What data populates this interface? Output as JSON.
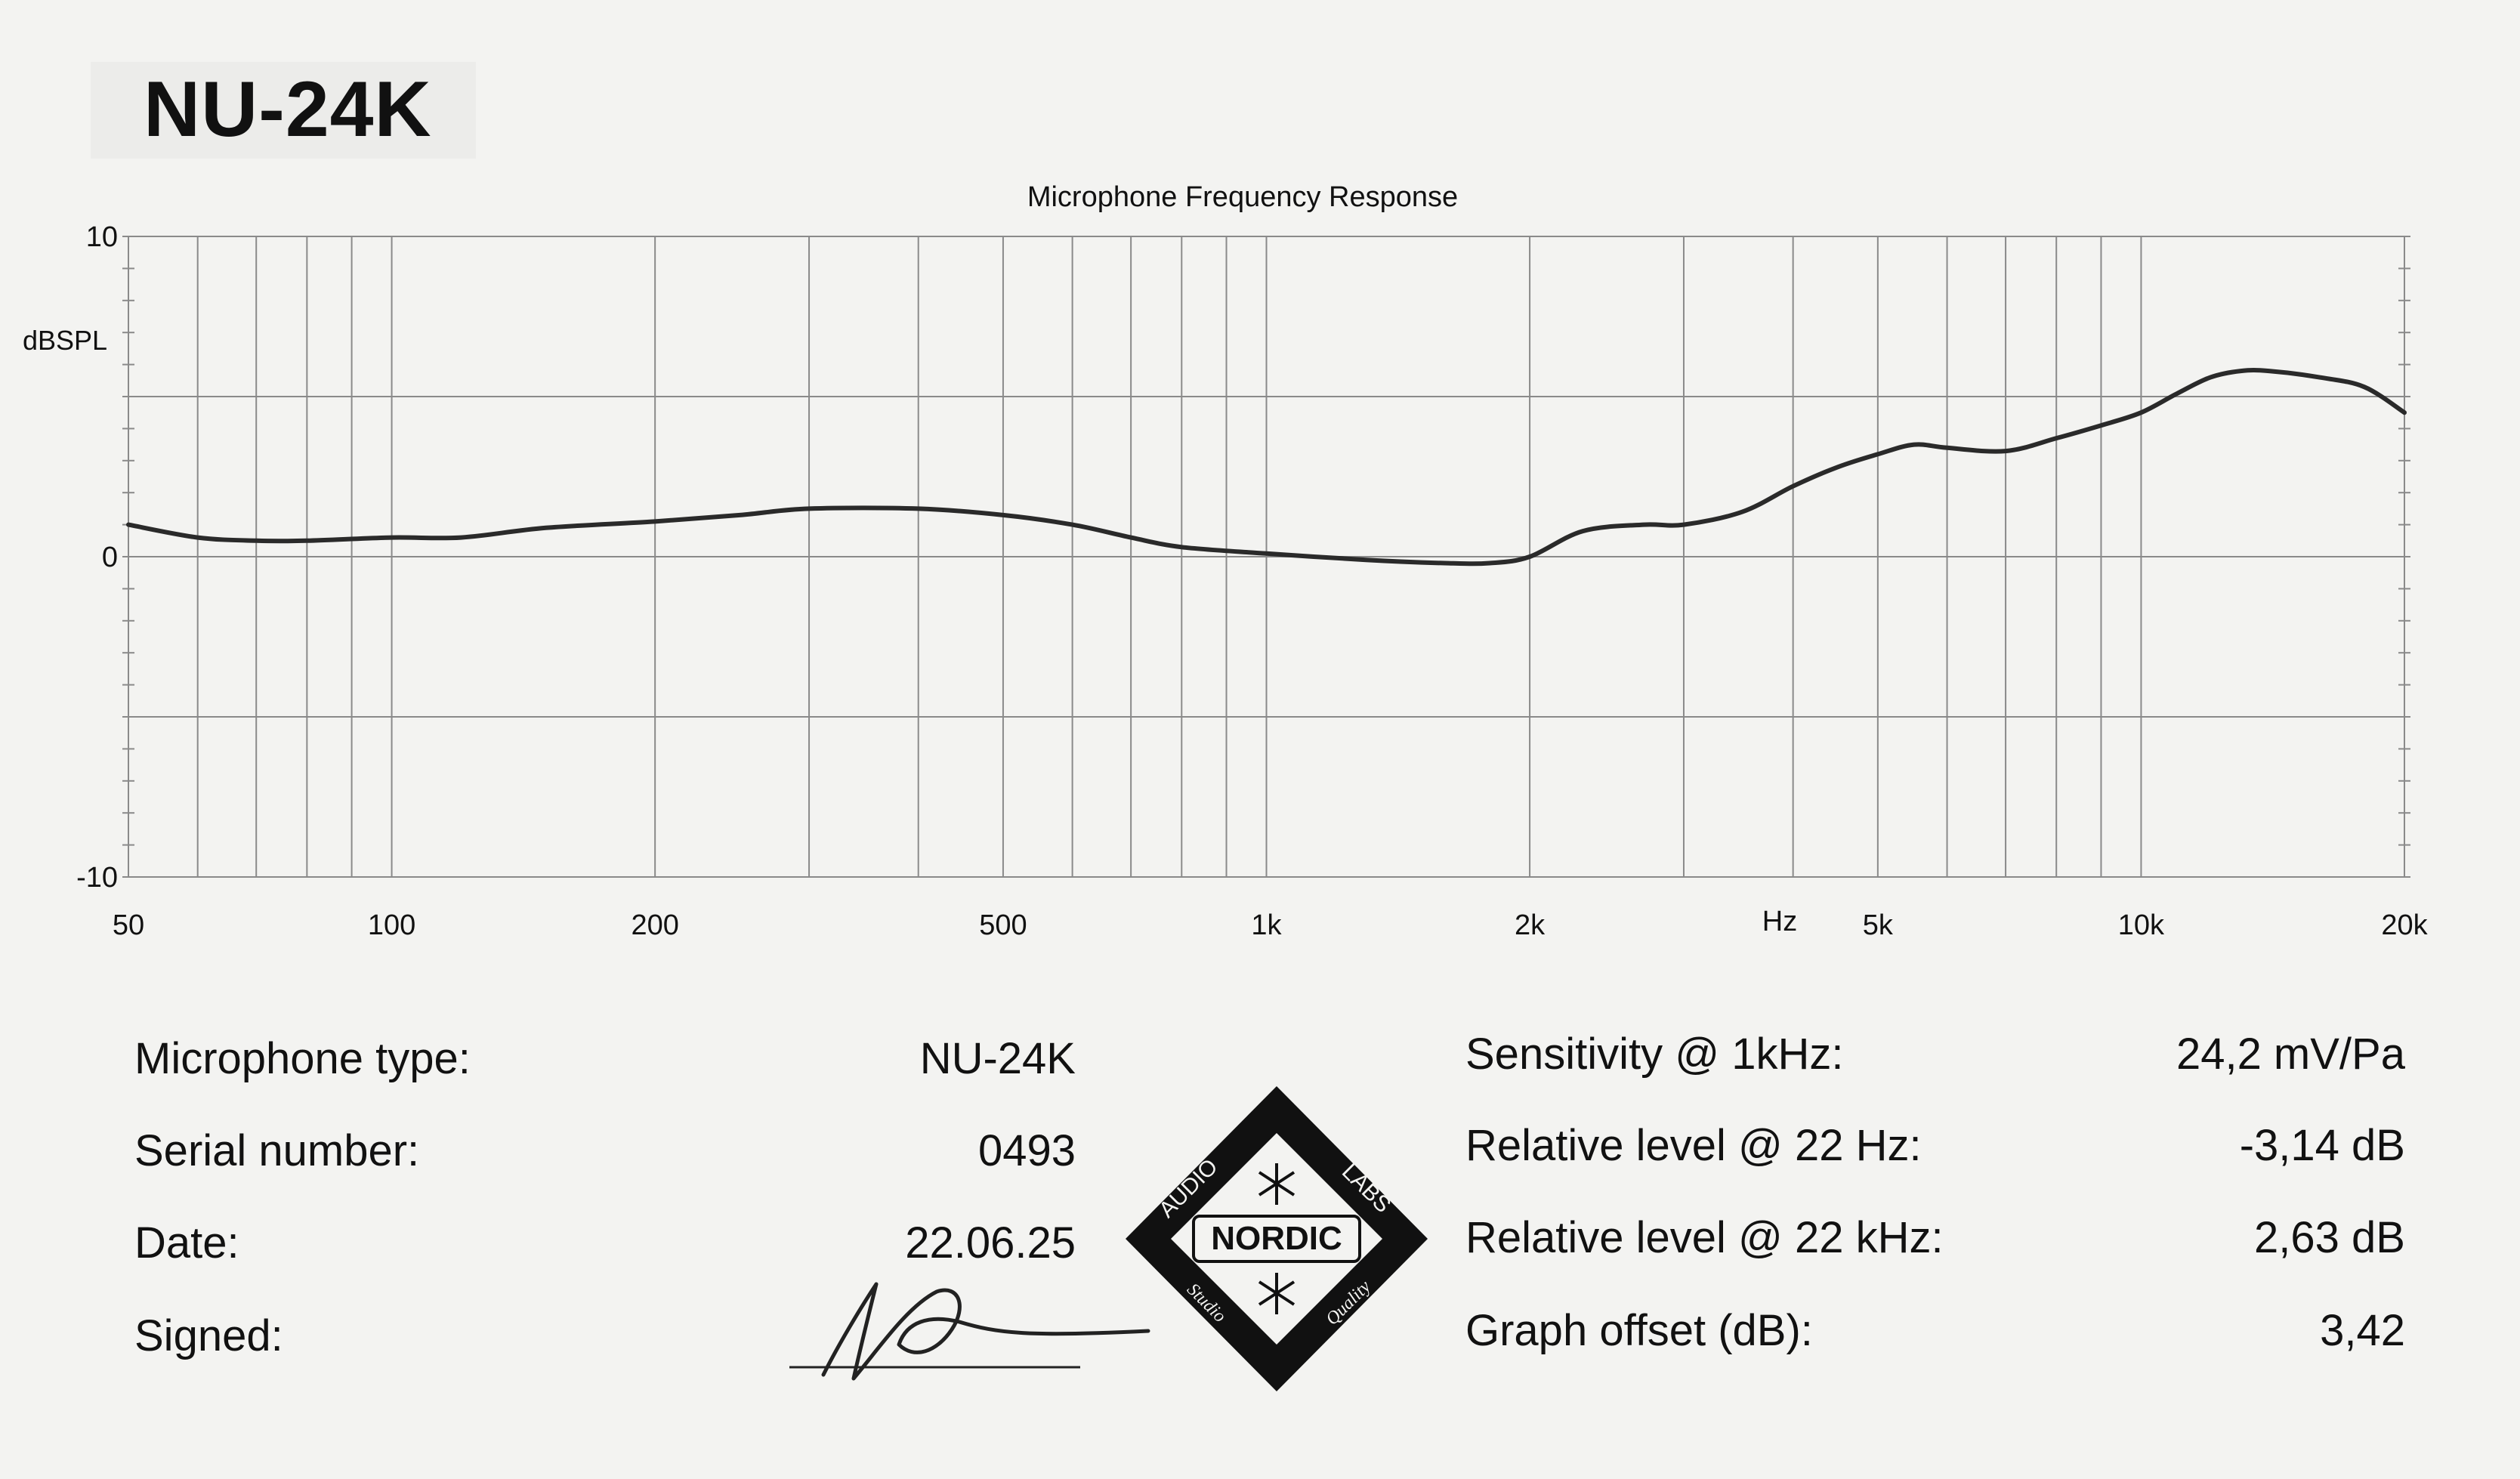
{
  "model": "NU-24K",
  "chart_data": {
    "type": "line",
    "title": "Microphone Frequency Response",
    "xlabel": "Hz",
    "ylabel": "dBSPL",
    "xscale": "log",
    "xlim": [
      50,
      20000
    ],
    "ylim": [
      -10,
      10
    ],
    "x_ticks": [
      50,
      100,
      200,
      500,
      1000,
      2000,
      5000,
      10000,
      20000
    ],
    "x_tick_labels": [
      "50",
      "100",
      "200",
      "500",
      "1k",
      "2k",
      "5k",
      "10k",
      "20k"
    ],
    "y_ticks": [
      10,
      0,
      -10
    ],
    "y_tick_labels": [
      "10",
      "0",
      "-10"
    ],
    "grid": true,
    "series": [
      {
        "name": "Frequency response",
        "x": [
          50,
          60,
          70,
          80,
          100,
          120,
          150,
          200,
          250,
          300,
          400,
          500,
          600,
          700,
          800,
          1000,
          1300,
          1600,
          1800,
          2000,
          2300,
          2700,
          3000,
          3500,
          4000,
          4500,
          5000,
          5500,
          6000,
          7000,
          8000,
          9000,
          10000,
          11000,
          12000,
          13000,
          14000,
          16000,
          18000,
          20000
        ],
        "y": [
          1.0,
          0.6,
          0.5,
          0.5,
          0.6,
          0.6,
          0.9,
          1.1,
          1.3,
          1.5,
          1.5,
          1.3,
          1.0,
          0.6,
          0.3,
          0.1,
          -0.1,
          -0.2,
          -0.2,
          0.0,
          0.8,
          1.0,
          1.0,
          1.4,
          2.2,
          2.8,
          3.2,
          3.5,
          3.4,
          3.3,
          3.7,
          4.1,
          4.5,
          5.1,
          5.6,
          5.8,
          5.8,
          5.6,
          5.3,
          4.5
        ]
      }
    ]
  },
  "info_left": [
    {
      "label": "Microphone type:",
      "value": "NU-24K"
    },
    {
      "label": "Serial number:",
      "value": "0493"
    },
    {
      "label": "Date:",
      "value": "22.06.25"
    },
    {
      "label": "Signed:",
      "value": ""
    }
  ],
  "info_right": [
    {
      "label": "Sensitivity @ 1kHz:",
      "value": "24,2 mV/Pa"
    },
    {
      "label": "Relative level @ 22 Hz:",
      "value": "-3,14 dB"
    },
    {
      "label": "Relative level @ 22 kHz:",
      "value": "2,63 dB"
    },
    {
      "label": "Graph offset (dB):",
      "value": "3,42"
    }
  ],
  "logo": {
    "top_left_text": "AUDIO",
    "top_right_text": "LABS",
    "center_text": "NORDIC",
    "bottom_left_text": "Studio",
    "bottom_right_text": "Quality"
  },
  "colors": {
    "background": "#f3f3f1",
    "line": "#2a2a2a",
    "grid": "#8a8a8a",
    "text": "#111111"
  }
}
